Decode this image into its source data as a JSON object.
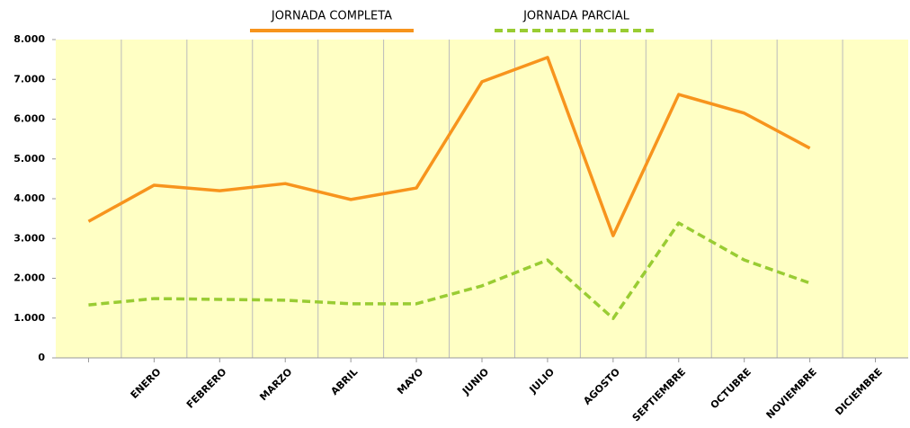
{
  "chart_data": {
    "type": "line",
    "categories": [
      null,
      "ENERO",
      "FEBRERO",
      "MARZO",
      "ABRIL",
      "MAYO",
      "JUNIO",
      "JULIO",
      "AGOSTO",
      "SEPTIEMBRE",
      "OCTUBRE",
      "NOVIEMBRE",
      "DICIEMBRE"
    ],
    "series": [
      {
        "name": "JORNADA COMPLETA",
        "color": "#f7941d",
        "style": "solid",
        "values": [
          3430,
          4340,
          4200,
          4380,
          3980,
          4270,
          6940,
          7550,
          3070,
          6620,
          6150,
          5270,
          null
        ]
      },
      {
        "name": "JORNADA PARCIAL",
        "color": "#99cc33",
        "style": "dashed",
        "values": [
          1330,
          1490,
          1470,
          1450,
          1360,
          1360,
          1810,
          2460,
          990,
          3390,
          2460,
          1880,
          null
        ]
      }
    ],
    "ylim": [
      0,
      8000
    ],
    "yticks": [
      0,
      {
        "value": 1000,
        "label": "1.000"
      },
      {
        "value": 2000,
        "label": "2.000"
      },
      {
        "value": 3000,
        "label": "3.000"
      },
      {
        "value": 4000,
        "label": "4.000"
      },
      {
        "value": 5000,
        "label": "5.000"
      },
      {
        "value": 6000,
        "label": "6.000"
      },
      {
        "value": 7000,
        "label": "7.000"
      },
      {
        "value": 8000,
        "label": "8.000"
      }
    ],
    "grid": "x",
    "background": "#ffffc4"
  }
}
